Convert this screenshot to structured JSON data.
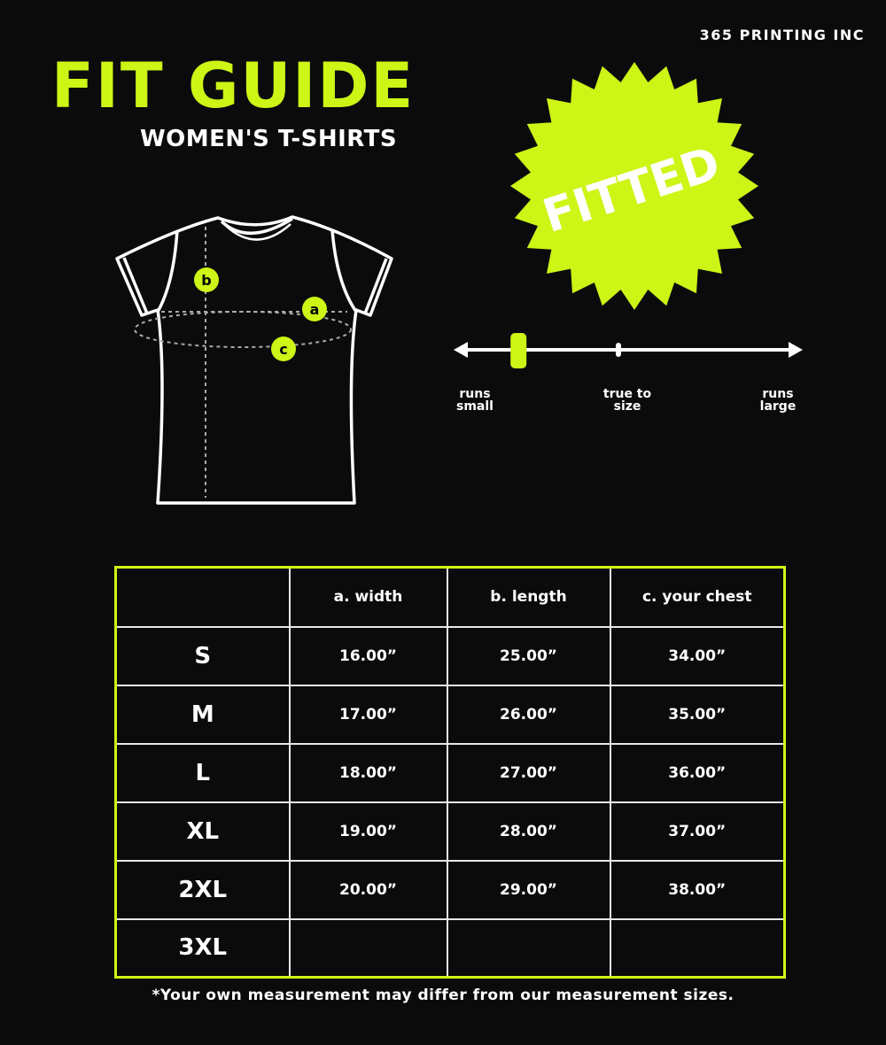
{
  "brand": "365 PRINTING INC",
  "title": "FIT GUIDE",
  "subtitle": "WOMEN'S T-SHIRTS",
  "badge": "FITTED",
  "colors": {
    "accent": "#cdf516",
    "background": "#0b0b0b",
    "line": "#ffffff"
  },
  "diagram_markers": [
    "a",
    "b",
    "c"
  ],
  "fit_scale": {
    "labels": {
      "small": "runs small",
      "true": "true to size",
      "large": "runs large"
    },
    "value": 0.18
  },
  "table": {
    "headers": [
      "",
      "a. width",
      "b. length",
      "c. your chest"
    ],
    "rows": [
      [
        "S",
        "16.00”",
        "25.00”",
        "34.00”"
      ],
      [
        "M",
        "17.00”",
        "26.00”",
        "35.00”"
      ],
      [
        "L",
        "18.00”",
        "27.00”",
        "36.00”"
      ],
      [
        "XL",
        "19.00”",
        "28.00”",
        "37.00”"
      ],
      [
        "2XL",
        "20.00”",
        "29.00”",
        "38.00”"
      ],
      [
        "3XL",
        "",
        "",
        ""
      ]
    ]
  },
  "note": "*Your own measurement may differ from our measurement sizes."
}
